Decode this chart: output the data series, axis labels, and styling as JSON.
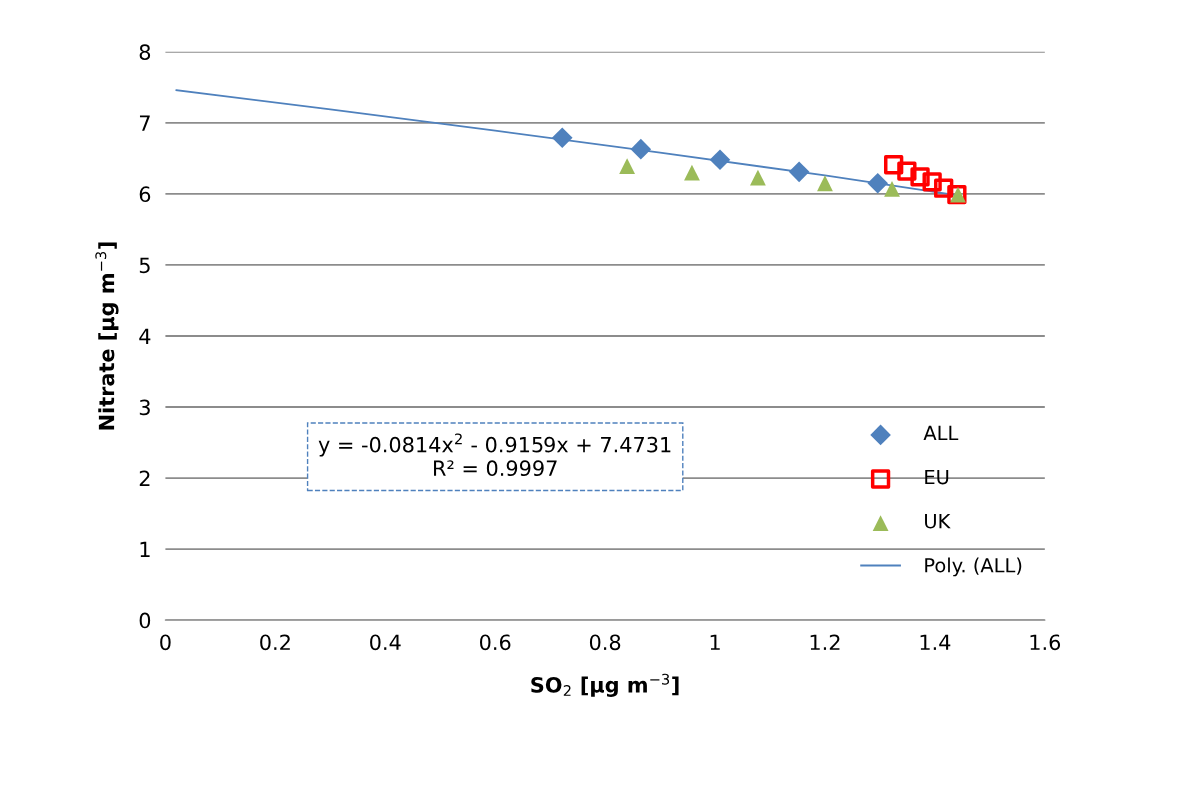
{
  "chart_data": {
    "type": "scatter",
    "xlabel": "SO$_{2}$ [μg m$^{−3}$]",
    "ylabel": "Nitrate [μg m$^{−3}$]",
    "series": [
      {
        "name": "ALL",
        "color": "#4f81bd",
        "marker": "diamond",
        "x": [
          0.722,
          0.865,
          1.009,
          1.153,
          1.296
        ],
        "values": [
          6.79,
          6.63,
          6.48,
          6.31,
          6.15
        ]
      },
      {
        "name": "EU",
        "color": "#ff0000",
        "marker": "square",
        "x": [
          1.325,
          1.349,
          1.373,
          1.395,
          1.416,
          1.44
        ],
        "values": [
          6.41,
          6.32,
          6.24,
          6.17,
          6.08,
          5.99
        ]
      },
      {
        "name": "UK",
        "color": "#9bbb59",
        "marker": "triangle",
        "x": [
          0.84,
          0.958,
          1.078,
          1.2,
          1.322,
          1.442
        ],
        "values": [
          6.39,
          6.3,
          6.23,
          6.15,
          6.07,
          5.99
        ]
      },
      {
        "name": "Poly. (ALL)",
        "type": "line",
        "color": "#4f81bd",
        "marker": "none",
        "line_style": "solid",
        "x": [
          0.02,
          0.3,
          0.6,
          0.9,
          1.2,
          1.44
        ],
        "values": [
          7.46,
          7.19,
          6.89,
          6.58,
          6.26,
          5.98
        ]
      }
    ],
    "annotations": [
      "y = -0.0814x$^{2}$ - 0.9159x + 7.4731\nR² = 0.9997"
    ],
    "xlim": [
      0,
      1.6
    ],
    "xticks": [
      0,
      0.2,
      0.4,
      0.6,
      0.8,
      1,
      1.2,
      1.4,
      1.6
    ],
    "ylim": [
      0,
      8
    ],
    "yticks": [
      0,
      1,
      2,
      3,
      4,
      5,
      6,
      7,
      8
    ],
    "grid": "y",
    "legend": "right"
  }
}
